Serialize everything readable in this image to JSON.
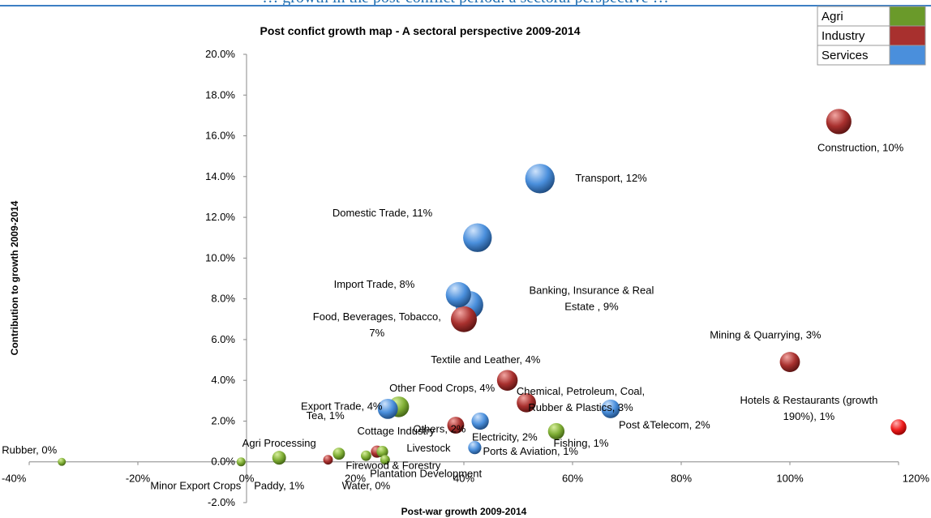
{
  "top_strip_text": "… growth in the post-conflict period: a sectoral perspective …",
  "chart_data": {
    "type": "bubble",
    "title": "Post confict growth map - A sectoral perspective 2009-2014",
    "xlabel": "Post-war growth 2009-2014",
    "ylabel": "Contribution to growth 2009-2014",
    "xlim": [
      -0.4,
      1.2
    ],
    "ylim": [
      -0.02,
      0.2
    ],
    "xticks": [
      -0.4,
      -0.2,
      0,
      0.2,
      0.4,
      0.6,
      0.8,
      1.0,
      1.2
    ],
    "xtick_labels": [
      "-40%",
      "-20%",
      "0%",
      "20%",
      "40%",
      "60%",
      "80%",
      "100%",
      "120%"
    ],
    "yticks": [
      -0.02,
      0,
      0.02,
      0.04,
      0.06,
      0.08,
      0.1,
      0.12,
      0.14,
      0.16,
      0.18,
      0.2
    ],
    "ytick_labels": [
      "-2.0%",
      "0.0%",
      "2.0%",
      "4.0%",
      "6.0%",
      "8.0%",
      "10.0%",
      "12.0%",
      "14.0%",
      "16.0%",
      "18.0%",
      "20.0%"
    ],
    "grid": false,
    "legend_position": "top-right",
    "legend": [
      {
        "name": "Agri",
        "color": "#6a9a2a"
      },
      {
        "name": "Industry",
        "color": "#a8302e"
      },
      {
        "name": "Services",
        "color": "#4a8fdc"
      }
    ],
    "colors": {
      "Agri": "#6a9a2a",
      "Industry": "#a8302e",
      "Services": "#4a8fdc",
      "Outlier": "#ee1c1c"
    },
    "points": [
      {
        "label": "Rubber, 0%",
        "x": -0.34,
        "y": 0.0,
        "size": 0.3,
        "sector": "Agri",
        "anchor": "left",
        "lx": -0.34,
        "ly": 0.004
      },
      {
        "label": "Minor Export Crops",
        "x": -0.01,
        "y": 0.0,
        "size": 0.4,
        "sector": "Agri",
        "anchor": "right",
        "lx": -0.01,
        "ly": -0.0135
      },
      {
        "label": "Paddy, 1%",
        "x": 0.06,
        "y": 0.002,
        "size": 1.2,
        "sector": "Agri",
        "anchor": "middle",
        "lx": 0.06,
        "ly": -0.0135
      },
      {
        "label": "Agri Processing",
        "x": 0.06,
        "y": 0.002,
        "size": 1.2,
        "sector": "Agri",
        "anchor": "middle",
        "lx": 0.06,
        "ly": 0.0075
      },
      {
        "label": "Tea, 1%",
        "x": 0.17,
        "y": 0.004,
        "size": 0.9,
        "sector": "Agri",
        "anchor": "middle",
        "lx": 0.145,
        "ly": 0.021
      },
      {
        "label": "Firewood & Forestry",
        "x": 0.22,
        "y": 0.003,
        "size": 0.6,
        "sector": "Agri",
        "anchor": "middle",
        "lx": 0.27,
        "ly": -0.0035
      },
      {
        "label": "Water, 0%",
        "x": 0.15,
        "y": 0.001,
        "size": 0.5,
        "sector": "Industry",
        "anchor": "middle",
        "lx": 0.22,
        "ly": -0.0135
      },
      {
        "label": "Cottage Industry",
        "x": 0.24,
        "y": 0.005,
        "size": 0.9,
        "sector": "Industry",
        "anchor": "middle",
        "lx": 0.275,
        "ly": 0.0135
      },
      {
        "label": "Livestock",
        "x": 0.25,
        "y": 0.005,
        "size": 0.8,
        "sector": "Agri",
        "anchor": "middle",
        "lx": 0.335,
        "ly": 0.005
      },
      {
        "label": "Plantation Development",
        "x": 0.255,
        "y": 0.001,
        "size": 0.5,
        "sector": "Agri",
        "anchor": "middle",
        "lx": 0.33,
        "ly": -0.0075
      },
      {
        "label": "Other Food Crops, 4%",
        "x": 0.28,
        "y": 0.027,
        "size": 3.2,
        "sector": "Agri",
        "anchor": "middle",
        "lx": 0.36,
        "ly": 0.0345
      },
      {
        "label": "Export Trade, 4%",
        "x": 0.26,
        "y": 0.026,
        "size": 3.0,
        "sector": "Services",
        "anchor": "end",
        "lx": 0.25,
        "ly": 0.0255
      },
      {
        "label": "Others, 2%",
        "x": 0.385,
        "y": 0.018,
        "size": 2.0,
        "sector": "Industry",
        "anchor": "middle",
        "lx": 0.355,
        "ly": 0.0145
      },
      {
        "label": "Electricity, 2%",
        "x": 0.43,
        "y": 0.02,
        "size": 2.1,
        "sector": "Services",
        "anchor": "start",
        "lx": 0.415,
        "ly": 0.0105
      },
      {
        "label": "Ports & Aviation, 1%",
        "x": 0.42,
        "y": 0.007,
        "size": 1.1,
        "sector": "Services",
        "anchor": "start",
        "lx": 0.435,
        "ly": 0.0035
      },
      {
        "label": "Textile and Leather, 4%",
        "x": 0.48,
        "y": 0.04,
        "size": 3.2,
        "sector": "Industry",
        "anchor": "middle",
        "lx": 0.44,
        "ly": 0.0485
      },
      {
        "label": "Chemical, Petroleum, Coal, Rubber & Plastics, 3%",
        "x": 0.515,
        "y": 0.029,
        "size": 2.7,
        "sector": "Industry",
        "anchor": "middle",
        "lx": 0.615,
        "ly": 0.033
      },
      {
        "label": "Fishing, 1%",
        "x": 0.57,
        "y": 0.015,
        "size": 1.9,
        "sector": "Agri",
        "anchor": "start",
        "lx": 0.565,
        "ly": 0.0075
      },
      {
        "label": "Post &Telecom, 2%",
        "x": 0.67,
        "y": 0.026,
        "size": 2.5,
        "sector": "Services",
        "anchor": "start",
        "lx": 0.685,
        "ly": 0.0165
      },
      {
        "label": "Mining & Quarrying, 3%",
        "x": 1.0,
        "y": 0.049,
        "size": 3.0,
        "sector": "Industry",
        "anchor": "middle",
        "lx": 0.955,
        "ly": 0.0605
      },
      {
        "label": "Hotels & Restaurants (growth 190%), 1%",
        "x": 1.2,
        "y": 0.017,
        "size": 1.7,
        "sector": "Outlier",
        "anchor": "middle",
        "lx": 1.035,
        "ly": 0.0285
      },
      {
        "label": "Banking, Insurance & Real Estate , 9%",
        "x": 0.41,
        "y": 0.077,
        "size": 6.2,
        "sector": "Services",
        "anchor": "middle",
        "lx": 0.635,
        "ly": 0.0825
      },
      {
        "label": "Import Trade, 8%",
        "x": 0.39,
        "y": 0.082,
        "size": 5.0,
        "sector": "Services",
        "anchor": "middle",
        "lx": 0.235,
        "ly": 0.0855
      },
      {
        "label": "Food, Beverages, Tobacco, 7%",
        "x": 0.4,
        "y": 0.07,
        "size": 5.3,
        "sector": "Industry",
        "anchor": "middle",
        "lx": 0.24,
        "ly": 0.0695
      },
      {
        "label": "Domestic Trade, 11%",
        "x": 0.425,
        "y": 0.11,
        "size": 6.6,
        "sector": "Services",
        "anchor": "middle",
        "lx": 0.25,
        "ly": 0.1205
      },
      {
        "label": "Transport, 12%",
        "x": 0.54,
        "y": 0.139,
        "size": 7.0,
        "sector": "Services",
        "anchor": "start",
        "lx": 0.605,
        "ly": 0.1375
      },
      {
        "label": "Construction, 10%",
        "x": 1.09,
        "y": 0.167,
        "size": 5.0,
        "sector": "Industry",
        "anchor": "middle",
        "lx": 1.13,
        "ly": 0.1525
      }
    ]
  }
}
